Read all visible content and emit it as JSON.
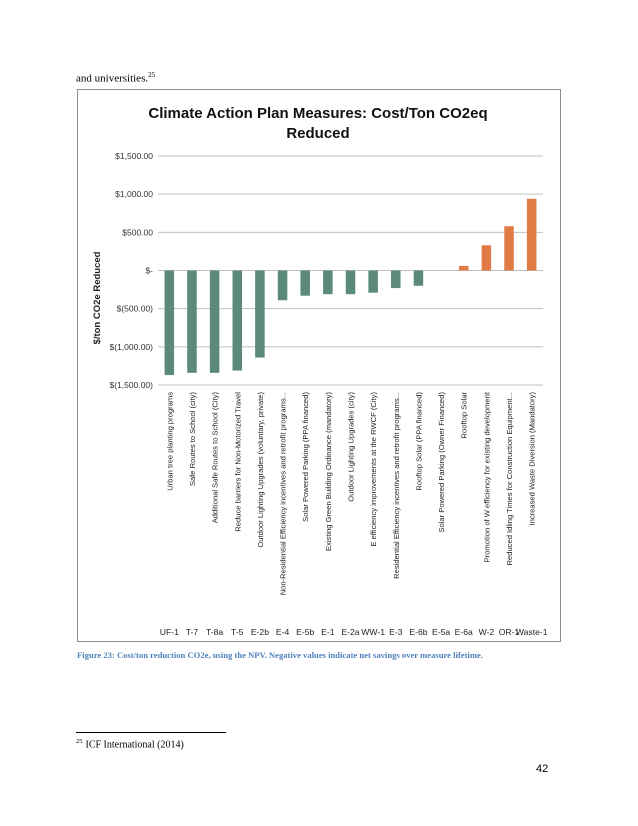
{
  "intro": {
    "text": "and universities.",
    "footnote_ref": "25"
  },
  "chart_data": {
    "type": "bar",
    "title_lines": [
      "Climate Action Plan Measures: Cost/Ton CO2eq",
      "Reduced"
    ],
    "ylabel": "$/ton CO2e Reduced",
    "xlabel": "",
    "ylim": [
      -1500,
      1500
    ],
    "yticks": [
      1500,
      1000,
      500,
      0,
      -500,
      -1000,
      -1500
    ],
    "ytick_labels": [
      "$1,500.00",
      "$1,000.00",
      "$500.00",
      "$-",
      "$(500.00)",
      "$(1,000.00)",
      "$(1,500.00)"
    ],
    "grid": true,
    "legend": "none",
    "negative_color": "#5b8a7a",
    "positive_color": "#e07b45",
    "categories": [
      "Urban tree planting programs",
      "Safe Routes to School (city)",
      "Additional Safe Routes to School (City)",
      "Reduce barriers for Non-Motorized Travel",
      "Outdoor Lighting Upgrades (voluntary, private)",
      "Non-Residential Efficiency incentives and retrofit programs...",
      "Solar Powered Parking (PPA financed)",
      "Existing Green Building Ordinance (mandatory)",
      "Outdoor Lighting Upgrades (city)",
      "E efficiency improvements at the RWCF (City)",
      "Residential Efficiency incentives and retrofit programs...",
      "Rooftop Solar (PPA financed)",
      "Solar Powered Parking (Owner Financed)",
      "Rooftop Solar",
      "Promotion of W efficiency for existing development",
      "Reduced Idling Times for Construction Equipment...",
      "Increased Waste Diversion (Mandatory)"
    ],
    "codes": [
      "UF-1",
      "T-7",
      "T-8a",
      "T-5",
      "E-2b",
      "E-4",
      "E-5b",
      "E-1",
      "E-2a",
      "WW-1",
      "E-3",
      "E-6b",
      "E-5a",
      "E-6a",
      "W-2",
      "OR-1",
      "Waste-1"
    ],
    "values": [
      -1370,
      -1340,
      -1340,
      -1310,
      -1140,
      -390,
      -330,
      -310,
      -310,
      -290,
      -230,
      -200,
      0,
      60,
      330,
      580,
      940
    ]
  },
  "caption": "Figure 23: Cost/ton reduction CO2e, using the NPV. Negative values indicate net savings over measure lifetime.",
  "footnote": {
    "number": "25",
    "text": "ICF International (2014)"
  },
  "page_number": "42"
}
